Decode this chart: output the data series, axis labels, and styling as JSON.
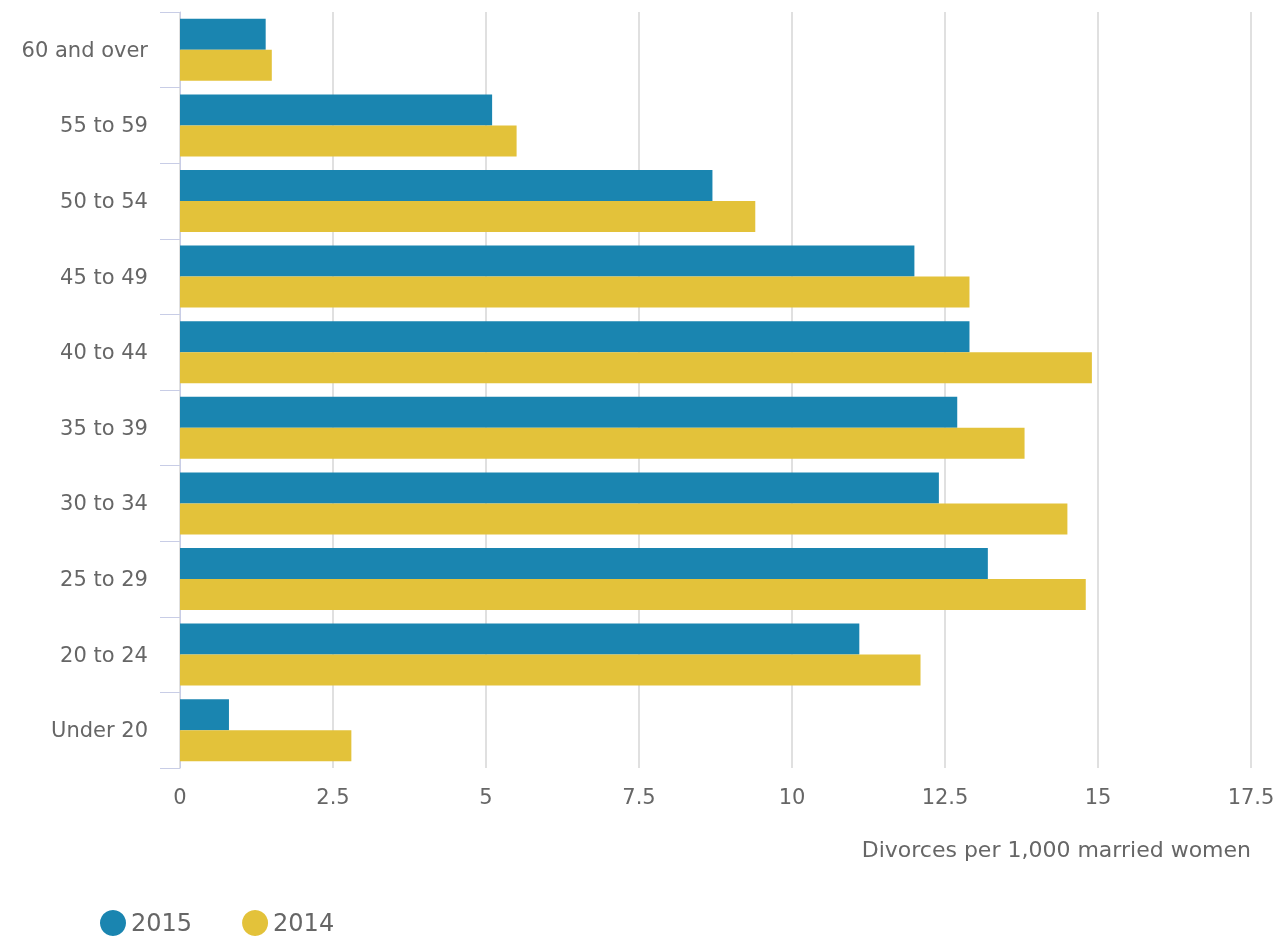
{
  "chart_data": {
    "type": "bar",
    "orientation": "horizontal",
    "xlabel": "Divorces per 1,000 married women",
    "categories": [
      "60 and over",
      "55 to 59",
      "50 to 54",
      "45 to 49",
      "40 to 44",
      "35 to 39",
      "30 to 34",
      "25 to 29",
      "20 to 24",
      "Under 20"
    ],
    "series": [
      {
        "name": "2015",
        "color": "#1a85b0",
        "values": [
          1.4,
          5.1,
          8.7,
          12.0,
          12.9,
          12.7,
          12.4,
          13.2,
          11.1,
          0.8
        ]
      },
      {
        "name": "2014",
        "color": "#e3c23a",
        "values": [
          1.5,
          5.5,
          9.4,
          12.9,
          14.9,
          13.8,
          14.5,
          14.8,
          12.1,
          2.8
        ]
      }
    ],
    "xlim": [
      0,
      17.5
    ],
    "xticks": [
      0,
      2.5,
      5,
      7.5,
      10,
      12.5,
      15,
      17.5
    ],
    "grid": "x",
    "legend": "bottom left"
  }
}
